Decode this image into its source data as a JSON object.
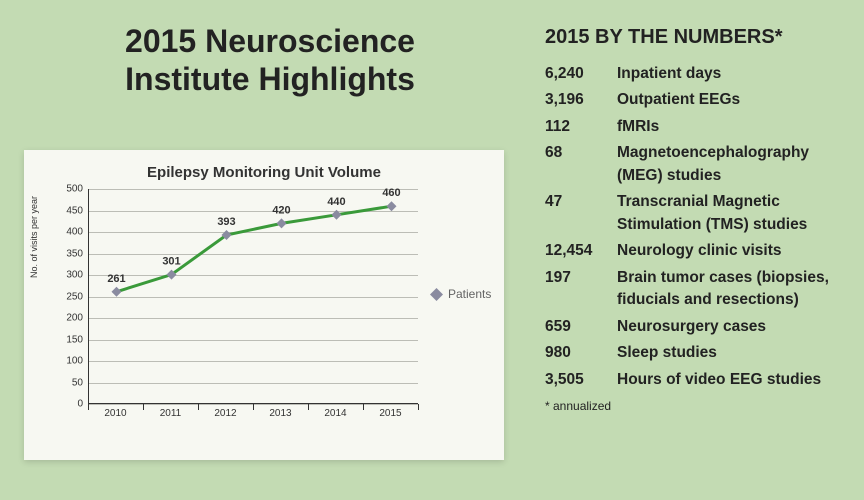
{
  "title": "2015 Neuroscience Institute Highlights",
  "chart": {
    "type": "line",
    "title": "Epilepsy Monitoring Unit Volume",
    "y_label": "No. of visits per year",
    "legend": "Patients",
    "series_color": "#3a9a3a",
    "marker_color": "#8a8ba0",
    "marker_shape": "diamond",
    "line_width": 3,
    "background_color": "#f7f8f2",
    "grid_color": "#bcbdb6",
    "ylim": [
      0,
      500
    ],
    "ytick_step": 50,
    "categories": [
      "2010",
      "2011",
      "2012",
      "2013",
      "2014",
      "2015"
    ],
    "values": [
      261,
      301,
      393,
      420,
      440,
      460
    ],
    "data_label_fontsize": 11,
    "axis_fontsize": 10,
    "title_fontsize": 15
  },
  "stats": {
    "heading": "2015 BY THE NUMBERS*",
    "items": [
      {
        "num": "6,240",
        "label": "Inpatient days"
      },
      {
        "num": "3,196",
        "label": "Outpatient EEGs"
      },
      {
        "num": "112",
        "label": "fMRIs"
      },
      {
        "num": "68",
        "label": "Magnetoencephalography (MEG) studies"
      },
      {
        "num": "47",
        "label": "Transcranial Magnetic Stimulation (TMS) studies"
      },
      {
        "num": "12,454",
        "label": "Neurology clinic visits"
      },
      {
        "num": "197",
        "label": "Brain tumor cases (biopsies, fiducials and resections)"
      },
      {
        "num": "659",
        "label": "Neurosurgery cases"
      },
      {
        "num": "980",
        "label": "Sleep studies"
      },
      {
        "num": "3,505",
        "label": "Hours of video EEG studies"
      }
    ],
    "footnote": "* annualized"
  },
  "page_background": "#c3dbb3"
}
